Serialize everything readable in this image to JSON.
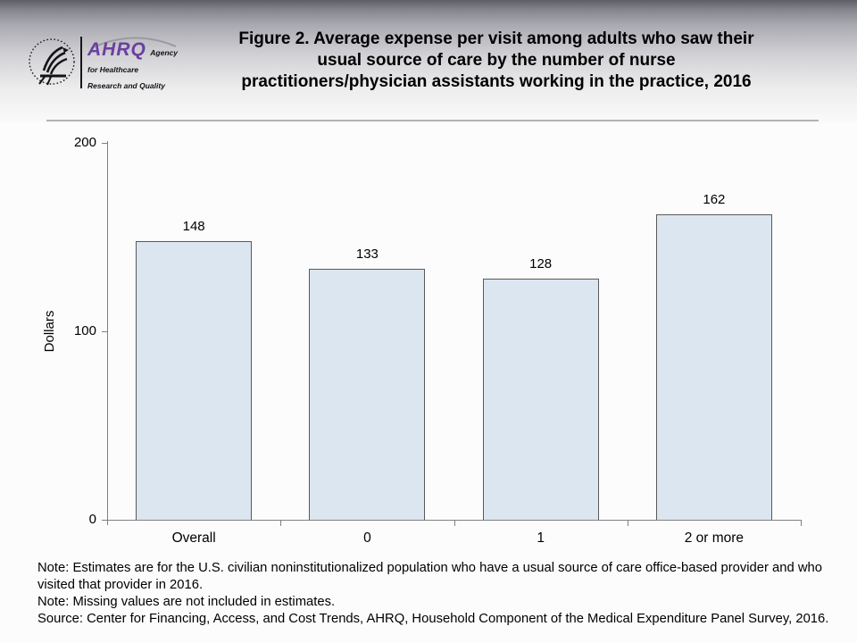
{
  "header": {
    "logo": {
      "hhs_seal_alt": "U.S. Department of Health and Human Services eagle seal",
      "acronym": "AHRQ",
      "tagline_line1": "Agency for Healthcare",
      "tagline_line2": "Research and Quality"
    }
  },
  "chart_data": {
    "type": "bar",
    "title": "Figure 2. Average expense per visit among adults who saw their usual source of care by the number of nurse practitioners/physician assistants working in the practice, 2016",
    "title_lines": [
      "Figure 2. Average expense per visit among adults who saw their",
      "usual source of care by the number of nurse",
      "practitioners/physician assistants working in the practice, 2016"
    ],
    "categories": [
      "Overall",
      "0",
      "1",
      "2 or more"
    ],
    "values": [
      148,
      133,
      128,
      162
    ],
    "xlabel": "",
    "ylabel": "Dollars",
    "ylim": [
      0,
      200
    ],
    "yticks": [
      0,
      100,
      200
    ],
    "grid": false,
    "legend": "none",
    "data_labels": true,
    "bar_fill": "#dce6f1",
    "bar_border": "#595959",
    "axis_color": "#808080"
  },
  "notes": [
    "Note: Estimates are for the U.S. civilian noninstitutionalized population who have a usual source of care office-based provider and who visited that provider in 2016.",
    "Note: Missing values are not included in estimates.",
    "Source: Center for Financing, Access, and Cost Trends, AHRQ, Household Component of the Medical Expenditure Panel Survey, 2016."
  ]
}
